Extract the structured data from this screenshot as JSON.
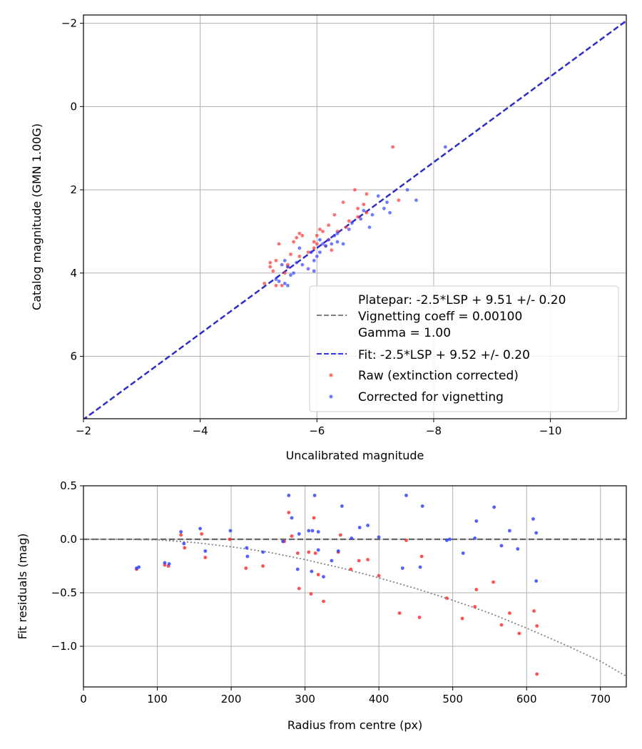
{
  "chart_data": [
    {
      "type": "scatter",
      "xlabel": "Uncalibrated magnitude",
      "ylabel": "Catalog magnitude (GMN 1.00G)",
      "xlim": [
        -2.0,
        -11.3
      ],
      "ylim": [
        7.5,
        -2.2
      ],
      "x_inverted": true,
      "y_inverted": true,
      "xticks": [
        -2,
        -4,
        -6,
        -8,
        -10
      ],
      "xtick_labels": [
        "−2",
        "−4",
        "−6",
        "−8",
        "−10"
      ],
      "yticks": [
        -2,
        0,
        2,
        4,
        6
      ],
      "ytick_labels": [
        "−2",
        "0",
        "2",
        "4",
        "6"
      ],
      "grid": true,
      "legend_position": "lower-right",
      "legend": [
        {
          "kind": "dashed-line",
          "color": "#808080",
          "lines": [
            "Platepar: -2.5*LSP + 9.51 +/- 0.20",
            "Vignetting coeff = 0.00100",
            "Gamma = 1.00"
          ]
        },
        {
          "kind": "dashed-line",
          "color": "#3333ee",
          "lines": [
            "Fit: -2.5*LSP + 9.52 +/- 0.20"
          ]
        },
        {
          "kind": "marker",
          "color": "#ff3333",
          "lines": [
            "Raw (extinction corrected)"
          ]
        },
        {
          "kind": "marker",
          "color": "#3344ff",
          "lines": [
            "Corrected for vignetting"
          ]
        }
      ],
      "lines": [
        {
          "name": "Platepar: -2.5*LSP + 9.51 +/- 0.20",
          "color": "#808080",
          "style": "dashed",
          "points": [
            [
              -1.98,
              7.53
            ],
            [
              -11.35,
              -2.12
            ]
          ]
        },
        {
          "name": "Fit: -2.5*LSP + 9.52 +/- 0.20",
          "color": "#2222dd",
          "style": "dashed",
          "points": [
            [
              -1.98,
              7.54
            ],
            [
              -11.35,
              -2.11
            ]
          ]
        }
      ],
      "series": [
        {
          "name": "Raw (extinction corrected)",
          "color": "#ff3333",
          "points": [
            [
              -7.3,
              0.97
            ],
            [
              -6.65,
              2.0
            ],
            [
              -7.4,
              2.25
            ],
            [
              -6.85,
              2.1
            ],
            [
              -6.8,
              2.35
            ],
            [
              -6.7,
              2.45
            ],
            [
              -6.85,
              2.55
            ],
            [
              -6.7,
              2.65
            ],
            [
              -6.55,
              2.75
            ],
            [
              -6.5,
              2.9
            ],
            [
              -6.45,
              2.3
            ],
            [
              -6.3,
              2.6
            ],
            [
              -6.2,
              2.85
            ],
            [
              -6.1,
              3.0
            ],
            [
              -6.05,
              2.95
            ],
            [
              -6.0,
              3.1
            ],
            [
              -5.95,
              3.25
            ],
            [
              -5.95,
              3.4
            ],
            [
              -5.85,
              3.5
            ],
            [
              -5.75,
              3.1
            ],
            [
              -5.7,
              3.05
            ],
            [
              -5.7,
              3.6
            ],
            [
              -5.65,
              3.15
            ],
            [
              -5.6,
              3.25
            ],
            [
              -5.55,
              3.55
            ],
            [
              -5.5,
              3.8
            ],
            [
              -5.45,
              4.0
            ],
            [
              -5.4,
              4.3
            ],
            [
              -5.35,
              3.3
            ],
            [
              -5.3,
              3.7
            ],
            [
              -5.25,
              3.95
            ],
            [
              -5.2,
              3.75
            ],
            [
              -5.2,
              3.85
            ],
            [
              -5.1,
              4.25
            ],
            [
              -5.3,
              4.3
            ],
            [
              -5.5,
              3.85
            ],
            [
              -6.2,
              3.2
            ],
            [
              -6.0,
              3.3
            ],
            [
              -6.25,
              3.45
            ],
            [
              -6.15,
              3.35
            ],
            [
              -6.35,
              3.0
            ]
          ]
        },
        {
          "name": "Corrected for vignetting",
          "color": "#3344ff",
          "points": [
            [
              -8.2,
              0.97
            ],
            [
              -7.05,
              2.15
            ],
            [
              -7.55,
              2.0
            ],
            [
              -7.7,
              2.25
            ],
            [
              -7.2,
              2.3
            ],
            [
              -7.25,
              2.55
            ],
            [
              -7.15,
              2.45
            ],
            [
              -6.95,
              2.6
            ],
            [
              -6.8,
              2.5
            ],
            [
              -6.75,
              2.7
            ],
            [
              -6.6,
              2.8
            ],
            [
              -6.55,
              2.95
            ],
            [
              -6.45,
              3.3
            ],
            [
              -6.9,
              2.9
            ],
            [
              -6.35,
              3.25
            ],
            [
              -6.3,
              3.1
            ],
            [
              -6.2,
              3.2
            ],
            [
              -6.15,
              3.35
            ],
            [
              -6.1,
              3.3
            ],
            [
              -6.05,
              3.5
            ],
            [
              -6.0,
              3.6
            ],
            [
              -5.95,
              3.7
            ],
            [
              -5.9,
              3.5
            ],
            [
              -5.85,
              3.9
            ],
            [
              -5.75,
              3.8
            ],
            [
              -5.65,
              3.75
            ],
            [
              -5.6,
              4.0
            ],
            [
              -5.55,
              4.05
            ],
            [
              -5.5,
              3.85
            ],
            [
              -5.45,
              3.7
            ],
            [
              -5.4,
              3.8
            ],
            [
              -5.5,
              4.3
            ],
            [
              -5.45,
              4.25
            ],
            [
              -5.35,
              4.2
            ],
            [
              -5.3,
              4.15
            ],
            [
              -6.35,
              3.05
            ],
            [
              -6.25,
              3.3
            ],
            [
              -5.95,
              3.95
            ],
            [
              -6.05,
              3.2
            ],
            [
              -5.7,
              3.4
            ]
          ]
        }
      ]
    },
    {
      "type": "scatter",
      "xlabel": "Radius from centre (px)",
      "ylabel": "Fit residuals (mag)",
      "xlim": [
        0,
        735
      ],
      "ylim": [
        -1.38,
        0.5
      ],
      "xticks": [
        0,
        100,
        200,
        300,
        400,
        500,
        600,
        700
      ],
      "xtick_labels": [
        "0",
        "100",
        "200",
        "300",
        "400",
        "500",
        "600",
        "700"
      ],
      "yticks": [
        0.5,
        0.0,
        -0.5,
        -1.0
      ],
      "ytick_labels": [
        "0.5",
        "0.0",
        "−0.5",
        "−1.0"
      ],
      "grid": true,
      "lines": [
        {
          "name": "zero line",
          "color": "#606060",
          "style": "dashed",
          "points": [
            [
              0,
              0
            ],
            [
              735,
              0
            ]
          ]
        },
        {
          "name": "vignetting model",
          "color": "#808080",
          "style": "dotted",
          "points": [
            [
              0,
              0.0
            ],
            [
              50,
              0.0
            ],
            [
              100,
              -0.005
            ],
            [
              150,
              -0.03
            ],
            [
              200,
              -0.07
            ],
            [
              250,
              -0.12
            ],
            [
              300,
              -0.19
            ],
            [
              350,
              -0.27
            ],
            [
              400,
              -0.36
            ],
            [
              450,
              -0.46
            ],
            [
              500,
              -0.57
            ],
            [
              550,
              -0.69
            ],
            [
              600,
              -0.83
            ],
            [
              650,
              -0.98
            ],
            [
              700,
              -1.14
            ],
            [
              735,
              -1.28
            ]
          ]
        }
      ],
      "series": [
        {
          "name": "Raw (extinction corrected)",
          "color": "#ff3333",
          "points": [
            [
              72,
              -0.28
            ],
            [
              110,
              -0.24
            ],
            [
              115,
              -0.25
            ],
            [
              132,
              0.04
            ],
            [
              137,
              -0.08
            ],
            [
              160,
              0.05
            ],
            [
              165,
              -0.17
            ],
            [
              198,
              0.0
            ],
            [
              220,
              -0.27
            ],
            [
              243,
              -0.25
            ],
            [
              272,
              -0.02
            ],
            [
              278,
              0.25
            ],
            [
              282,
              0.03
            ],
            [
              290,
              -0.13
            ],
            [
              292,
              -0.46
            ],
            [
              305,
              -0.12
            ],
            [
              308,
              -0.51
            ],
            [
              312,
              0.2
            ],
            [
              314,
              -0.13
            ],
            [
              318,
              -0.33
            ],
            [
              325,
              -0.58
            ],
            [
              345,
              -0.12
            ],
            [
              348,
              0.04
            ],
            [
              362,
              -0.28
            ],
            [
              373,
              -0.2
            ],
            [
              385,
              -0.19
            ],
            [
              400,
              -0.34
            ],
            [
              428,
              -0.69
            ],
            [
              437,
              -0.01
            ],
            [
              455,
              -0.73
            ],
            [
              458,
              -0.16
            ],
            [
              492,
              -0.55
            ],
            [
              530,
              -0.63
            ],
            [
              532,
              -0.47
            ],
            [
              513,
              -0.74
            ],
            [
              555,
              -0.4
            ],
            [
              566,
              -0.8
            ],
            [
              577,
              -0.69
            ],
            [
              590,
              -0.88
            ],
            [
              610,
              -0.67
            ],
            [
              614,
              -0.81
            ],
            [
              614,
              -1.26
            ]
          ]
        },
        {
          "name": "Corrected for vignetting",
          "color": "#3344ff",
          "points": [
            [
              75,
              -0.26
            ],
            [
              72,
              -0.27
            ],
            [
              110,
              -0.22
            ],
            [
              116,
              -0.23
            ],
            [
              132,
              0.07
            ],
            [
              136,
              -0.04
            ],
            [
              158,
              0.1
            ],
            [
              165,
              -0.11
            ],
            [
              199,
              0.08
            ],
            [
              222,
              -0.16
            ],
            [
              221,
              -0.08
            ],
            [
              243,
              -0.12
            ],
            [
              270,
              -0.02
            ],
            [
              278,
              0.41
            ],
            [
              282,
              0.2
            ],
            [
              290,
              -0.28
            ],
            [
              292,
              0.05
            ],
            [
              305,
              0.08
            ],
            [
              309,
              -0.3
            ],
            [
              310,
              0.08
            ],
            [
              313,
              0.41
            ],
            [
              318,
              -0.1
            ],
            [
              325,
              -0.35
            ],
            [
              336,
              -0.2
            ],
            [
              350,
              0.31
            ],
            [
              345,
              -0.11
            ],
            [
              363,
              0.01
            ],
            [
              374,
              0.11
            ],
            [
              385,
              0.13
            ],
            [
              400,
              0.02
            ],
            [
              432,
              -0.27
            ],
            [
              437,
              0.41
            ],
            [
              456,
              -0.26
            ],
            [
              459,
              0.31
            ],
            [
              492,
              -0.01
            ],
            [
              496,
              0.0
            ],
            [
              514,
              -0.13
            ],
            [
              530,
              0.01
            ],
            [
              532,
              0.17
            ],
            [
              556,
              0.3
            ],
            [
              566,
              -0.06
            ],
            [
              577,
              0.08
            ],
            [
              588,
              -0.09
            ],
            [
              609,
              0.19
            ],
            [
              613,
              0.06
            ],
            [
              613,
              -0.39
            ],
            [
              318,
              0.07
            ]
          ]
        }
      ]
    }
  ]
}
